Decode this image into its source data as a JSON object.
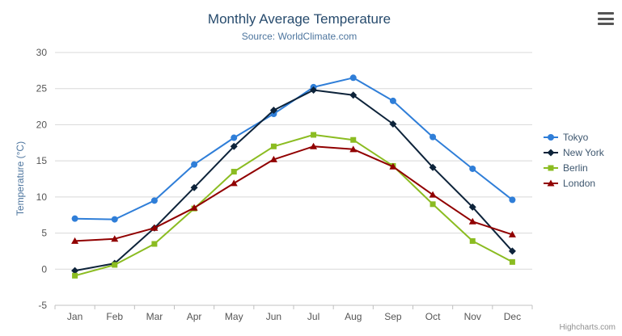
{
  "credits": "Highcharts.com",
  "chart_data": {
    "type": "line",
    "title": "Monthly Average Temperature",
    "subtitle": "Source: WorldClimate.com",
    "xlabel": "",
    "ylabel": "Temperature (°C)",
    "ylim": [
      -5,
      30
    ],
    "ytick_step": 5,
    "grid": true,
    "legend_position": "right",
    "categories": [
      "Jan",
      "Feb",
      "Mar",
      "Apr",
      "May",
      "Jun",
      "Jul",
      "Aug",
      "Sep",
      "Oct",
      "Nov",
      "Dec"
    ],
    "series": [
      {
        "name": "Tokyo",
        "color": "#2f7ed8",
        "marker": "circle",
        "values": [
          7.0,
          6.9,
          9.5,
          14.5,
          18.2,
          21.5,
          25.2,
          26.5,
          23.3,
          18.3,
          13.9,
          9.6
        ]
      },
      {
        "name": "New York",
        "color": "#0d233a",
        "marker": "diamond",
        "values": [
          -0.2,
          0.8,
          5.7,
          11.3,
          17.0,
          22.0,
          24.8,
          24.1,
          20.1,
          14.1,
          8.6,
          2.5
        ]
      },
      {
        "name": "Berlin",
        "color": "#8bbc21",
        "marker": "square",
        "values": [
          -0.9,
          0.6,
          3.5,
          8.4,
          13.5,
          17.0,
          18.6,
          17.9,
          14.3,
          9.0,
          3.9,
          1.0
        ]
      },
      {
        "name": "London",
        "color": "#910000",
        "marker": "triangle",
        "values": [
          3.9,
          4.2,
          5.7,
          8.5,
          11.9,
          15.2,
          17.0,
          16.6,
          14.2,
          10.3,
          6.6,
          4.8
        ]
      }
    ]
  }
}
